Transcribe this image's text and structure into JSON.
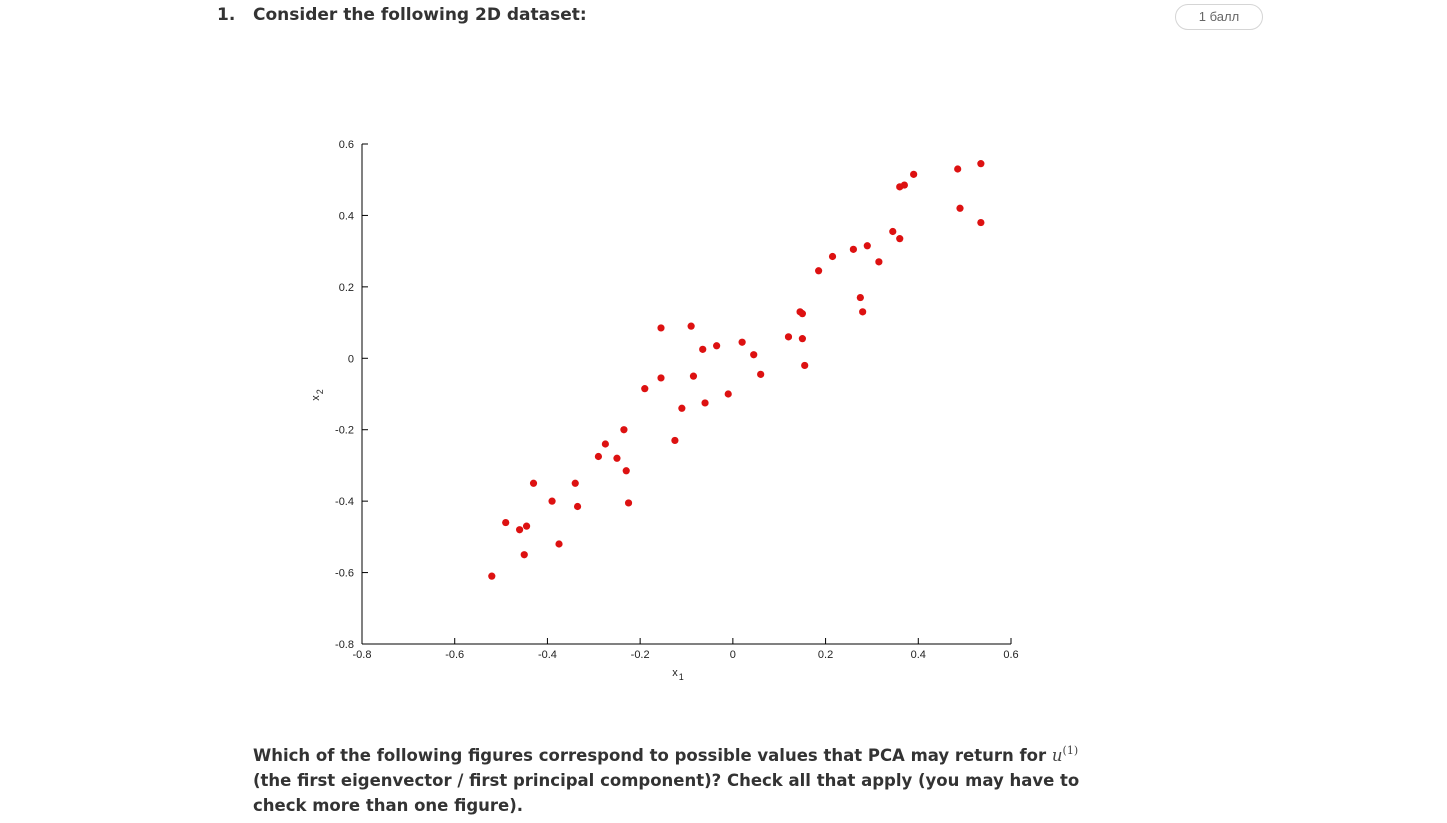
{
  "question": {
    "number": "1.",
    "prompt": "Consider the following 2D dataset:",
    "points_badge": "1 балл",
    "text_before_math": "Which of the following figures correspond to possible values that PCA may return for ",
    "math_symbol": "u",
    "math_superscript": "(1)",
    "text_after_math": " (the first eigenvector / first principal component)? Check all that apply (you may have to check more than one figure)."
  },
  "chart_data": {
    "type": "scatter",
    "xlabel": "x",
    "xlabel_sub": "1",
    "ylabel": "x",
    "ylabel_sub": "2",
    "xlim": [
      -0.8,
      0.6
    ],
    "ylim": [
      -0.8,
      0.6
    ],
    "xticks": [
      -0.8,
      -0.6,
      -0.4,
      -0.2,
      0,
      0.2,
      0.4,
      0.6
    ],
    "yticks": [
      -0.8,
      -0.6,
      -0.4,
      -0.2,
      0,
      0.2,
      0.4,
      0.6
    ],
    "xtick_labels": [
      "-0.8",
      "-0.6",
      "-0.4",
      "-0.2",
      "0",
      "0.2",
      "0.4",
      "0.6"
    ],
    "ytick_labels": [
      "-0.8",
      "-0.6",
      "-0.4",
      "-0.2",
      "0",
      "0.2",
      "0.4",
      "0.6"
    ],
    "grid": false,
    "marker_color": "#dd1111",
    "points": [
      [
        -0.52,
        -0.61
      ],
      [
        -0.49,
        -0.46
      ],
      [
        -0.46,
        -0.48
      ],
      [
        -0.45,
        -0.55
      ],
      [
        -0.445,
        -0.47
      ],
      [
        -0.43,
        -0.35
      ],
      [
        -0.39,
        -0.4
      ],
      [
        -0.375,
        -0.52
      ],
      [
        -0.34,
        -0.35
      ],
      [
        -0.335,
        -0.415
      ],
      [
        -0.29,
        -0.275
      ],
      [
        -0.275,
        -0.24
      ],
      [
        -0.25,
        -0.28
      ],
      [
        -0.235,
        -0.2
      ],
      [
        -0.23,
        -0.315
      ],
      [
        -0.225,
        -0.405
      ],
      [
        -0.19,
        -0.085
      ],
      [
        -0.155,
        0.085
      ],
      [
        -0.155,
        -0.055
      ],
      [
        -0.125,
        -0.23
      ],
      [
        -0.11,
        -0.14
      ],
      [
        -0.09,
        0.09
      ],
      [
        -0.085,
        -0.05
      ],
      [
        -0.065,
        0.025
      ],
      [
        -0.06,
        -0.125
      ],
      [
        -0.035,
        0.035
      ],
      [
        -0.01,
        -0.1
      ],
      [
        0.02,
        0.045
      ],
      [
        0.045,
        0.01
      ],
      [
        0.06,
        -0.045
      ],
      [
        0.12,
        0.06
      ],
      [
        0.145,
        0.13
      ],
      [
        0.15,
        0.125
      ],
      [
        0.15,
        0.055
      ],
      [
        0.155,
        -0.02
      ],
      [
        0.185,
        0.245
      ],
      [
        0.215,
        0.285
      ],
      [
        0.26,
        0.305
      ],
      [
        0.275,
        0.17
      ],
      [
        0.28,
        0.13
      ],
      [
        0.29,
        0.315
      ],
      [
        0.315,
        0.27
      ],
      [
        0.345,
        0.355
      ],
      [
        0.36,
        0.335
      ],
      [
        0.36,
        0.48
      ],
      [
        0.37,
        0.485
      ],
      [
        0.39,
        0.515
      ],
      [
        0.485,
        0.53
      ],
      [
        0.49,
        0.42
      ],
      [
        0.535,
        0.545
      ],
      [
        0.535,
        0.38
      ]
    ]
  }
}
